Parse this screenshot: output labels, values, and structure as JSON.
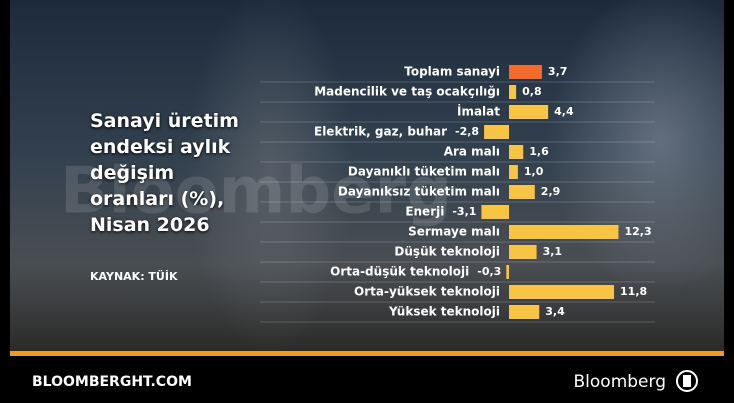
{
  "chart_data": {
    "type": "bar",
    "orientation": "horizontal",
    "title": "Sanayi üretim endeksi aylık değişim oranları (%), Nisan 2026",
    "source": "KAYNAK: TÜİK",
    "watermark": "Bloomberg",
    "categories": [
      "Toplam sanayi",
      "Madencilik ve taş ocakçılığı",
      "İmalat",
      "Elektrik, gaz, buhar",
      "Ara malı",
      "Dayanıklı tüketim malı",
      "Dayanıksız tüketim malı",
      "Enerji",
      "Sermaye malı",
      "Düşük teknoloji",
      "Orta-düşük teknoloji",
      "Orta-yüksek teknoloji",
      "Yüksek teknoloji"
    ],
    "values": [
      3.7,
      0.8,
      4.4,
      -2.8,
      1.6,
      1.0,
      2.9,
      -3.1,
      12.3,
      3.1,
      -0.3,
      11.8,
      3.4
    ],
    "value_labels": [
      "3,7",
      "0,8",
      "4,4",
      "-2,8",
      "1,6",
      "1,0",
      "2,9",
      "-3,1",
      "12,3",
      "3,1",
      "-0,3",
      "11,8",
      "3,4"
    ],
    "colors": [
      "#f26b2a",
      "#f7c443",
      "#f7c443",
      "#f7c443",
      "#f7c443",
      "#f7c443",
      "#f7c443",
      "#f7c443",
      "#f7c443",
      "#f7c443",
      "#f7c443",
      "#f7c443",
      "#f7c443"
    ]
  },
  "footer": {
    "site": "BLOOMBERGHT.COM",
    "brand": "Bloomberg"
  }
}
